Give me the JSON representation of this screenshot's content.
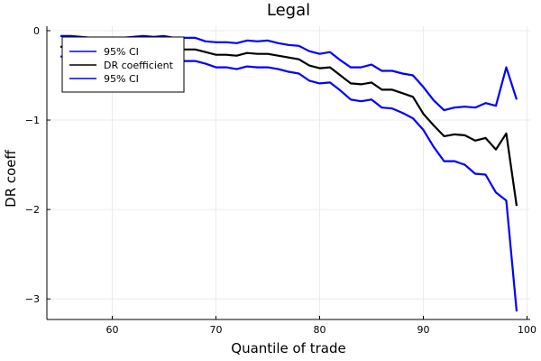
{
  "chart_data": {
    "type": "line",
    "title": "Legal",
    "xlabel": "Quantile of trade",
    "ylabel": "DR coeff",
    "xlim": [
      53.7,
      100.3
    ],
    "ylim": [
      -3.23,
      0.05
    ],
    "xticks": [
      60,
      70,
      80,
      90,
      100
    ],
    "yticks": [
      0,
      -1,
      -2,
      -3
    ],
    "grid": true,
    "legend_position": "top-left",
    "x": [
      55,
      56,
      57,
      58,
      59,
      60,
      61,
      62,
      63,
      64,
      65,
      66,
      67,
      68,
      69,
      70,
      71,
      72,
      73,
      74,
      75,
      76,
      77,
      78,
      79,
      80,
      81,
      82,
      83,
      84,
      85,
      86,
      87,
      88,
      89,
      90,
      91,
      92,
      93,
      94,
      95,
      96,
      97,
      98,
      99
    ],
    "series": [
      {
        "name": "95% CI",
        "color": "#0000ff",
        "values": [
          -0.06,
          -0.06,
          -0.07,
          -0.08,
          -0.08,
          -0.08,
          -0.08,
          -0.07,
          -0.06,
          -0.07,
          -0.06,
          -0.08,
          -0.08,
          -0.08,
          -0.12,
          -0.13,
          -0.13,
          -0.14,
          -0.11,
          -0.12,
          -0.11,
          -0.14,
          -0.16,
          -0.17,
          -0.23,
          -0.26,
          -0.24,
          -0.33,
          -0.41,
          -0.41,
          -0.38,
          -0.45,
          -0.45,
          -0.48,
          -0.5,
          -0.63,
          -0.78,
          -0.89,
          -0.86,
          -0.85,
          -0.86,
          -0.81,
          -0.84,
          -0.41,
          -0.77
        ]
      },
      {
        "name": "DR coefficient",
        "color": "#000000",
        "values": [
          -0.18,
          -0.18,
          -0.19,
          -0.2,
          -0.2,
          -0.2,
          -0.21,
          -0.2,
          -0.19,
          -0.2,
          -0.19,
          -0.21,
          -0.21,
          -0.21,
          -0.24,
          -0.27,
          -0.27,
          -0.28,
          -0.25,
          -0.26,
          -0.26,
          -0.28,
          -0.3,
          -0.32,
          -0.39,
          -0.42,
          -0.41,
          -0.5,
          -0.59,
          -0.6,
          -0.58,
          -0.66,
          -0.66,
          -0.7,
          -0.74,
          -0.93,
          -1.06,
          -1.18,
          -1.16,
          -1.17,
          -1.23,
          -1.2,
          -1.33,
          -1.15,
          -1.96
        ]
      },
      {
        "name": "95% CI",
        "color": "#0000ff",
        "values": [
          -0.29,
          -0.29,
          -0.3,
          -0.31,
          -0.31,
          -0.32,
          -0.33,
          -0.33,
          -0.31,
          -0.33,
          -0.32,
          -0.34,
          -0.34,
          -0.34,
          -0.37,
          -0.41,
          -0.41,
          -0.43,
          -0.4,
          -0.41,
          -0.41,
          -0.43,
          -0.46,
          -0.48,
          -0.56,
          -0.59,
          -0.58,
          -0.67,
          -0.77,
          -0.79,
          -0.77,
          -0.86,
          -0.87,
          -0.92,
          -0.98,
          -1.11,
          -1.3,
          -1.46,
          -1.46,
          -1.5,
          -1.6,
          -1.61,
          -1.81,
          -1.9,
          -3.14
        ]
      }
    ]
  }
}
